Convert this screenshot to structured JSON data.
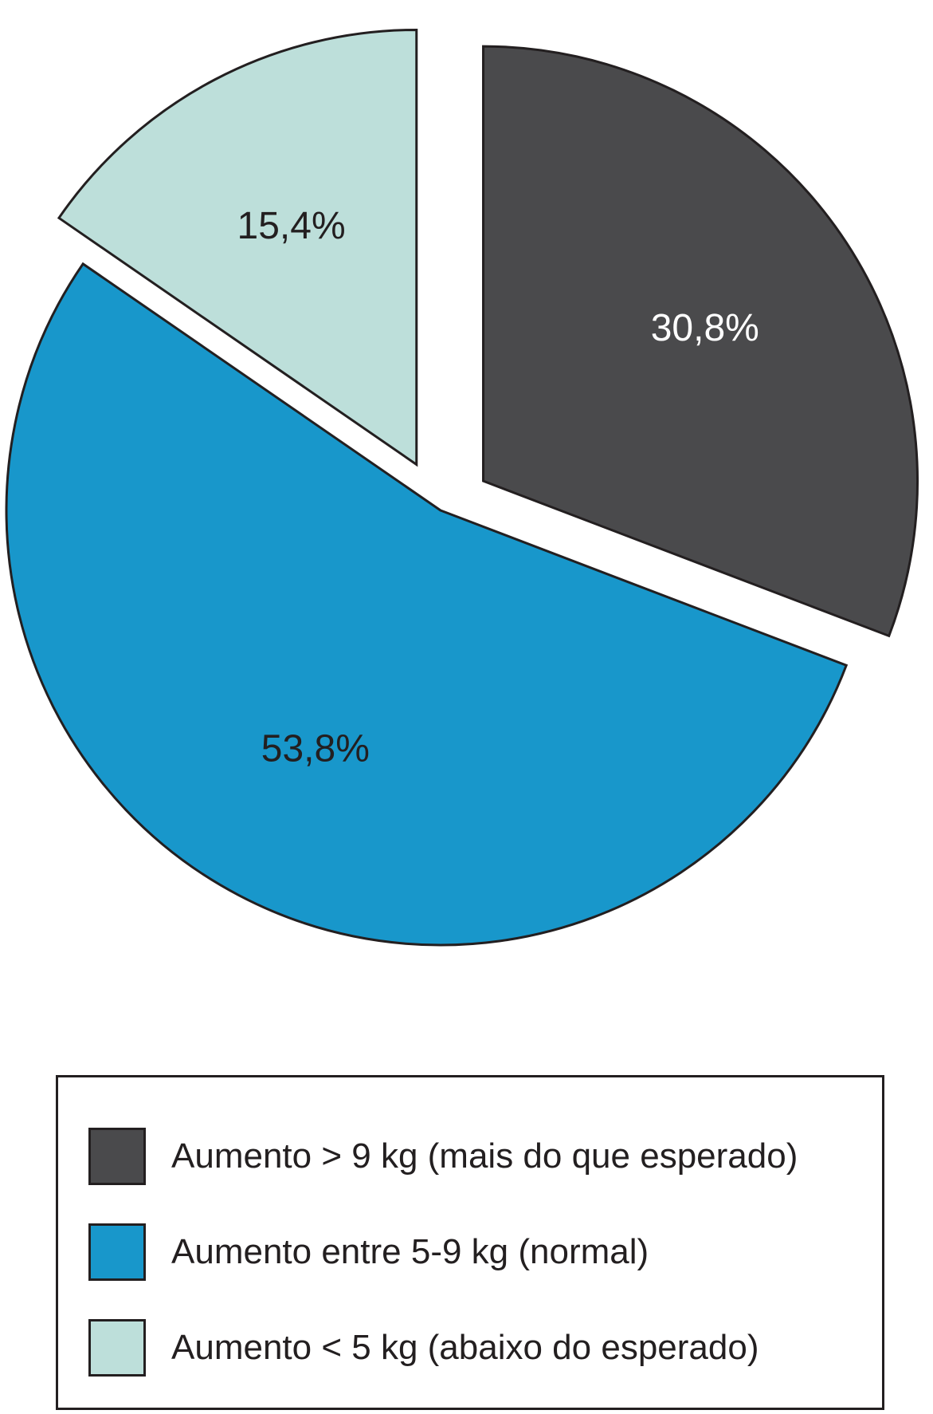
{
  "chart_data": {
    "type": "pie",
    "slices": [
      {
        "label": "Aumento > 9 kg (mais do que esperado)",
        "value": 30.8,
        "display": "30,8%",
        "color": "#4a4a4c",
        "label_color": "#ffffff"
      },
      {
        "label": "Aumento entre 5-9 kg (normal)",
        "value": 53.8,
        "display": "53,8%",
        "color": "#1897cb",
        "label_color": "#231f20"
      },
      {
        "label": "Aumento < 5 kg (abaixo do esperado)",
        "value": 15.4,
        "display": "15,4%",
        "color": "#bddfda",
        "label_color": "#231f20"
      }
    ],
    "exploded": [
      "Aumento > 9 kg (mais do que esperado)",
      "Aumento < 5 kg (abaixo do esperado)"
    ],
    "start_angle_deg": 0,
    "direction": "clockwise",
    "legend_position": "bottom",
    "stroke_color": "#231f20"
  }
}
